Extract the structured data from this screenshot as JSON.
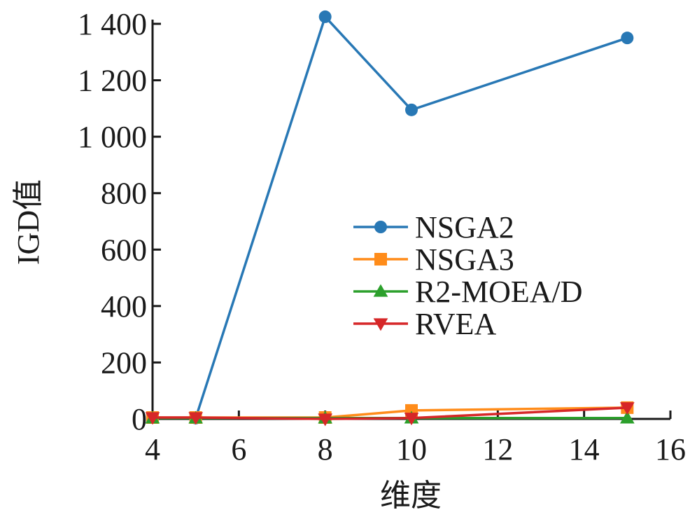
{
  "chart_data": {
    "type": "line",
    "xlabel": "维度",
    "ylabel": "IGD值",
    "xlim": [
      4,
      16
    ],
    "ylim": [
      0,
      1400
    ],
    "xticks": [
      4,
      6,
      8,
      10,
      12,
      14,
      16
    ],
    "yticks": [
      0,
      200,
      400,
      600,
      800,
      1000,
      1200,
      1400
    ],
    "xtick_labels": [
      "4",
      "6",
      "8",
      "10",
      "12",
      "14",
      "16"
    ],
    "ytick_labels": [
      "0",
      "200",
      "400",
      "600",
      "800",
      "1 000",
      "1 200",
      "1 400"
    ],
    "grid": false,
    "legend_position": "center-right",
    "x": [
      4,
      5,
      8,
      10,
      15
    ],
    "series": [
      {
        "name": "NSGA2",
        "values": [
          5,
          3,
          1425,
          1095,
          1350
        ],
        "color": "#2878b5",
        "marker": "circle"
      },
      {
        "name": "NSGA3",
        "values": [
          5,
          5,
          5,
          30,
          40
        ],
        "color": "#ff8c1a",
        "marker": "square"
      },
      {
        "name": "R2-MOEA/D",
        "values": [
          3,
          3,
          3,
          3,
          3
        ],
        "color": "#2ca02c",
        "marker": "triangle-up"
      },
      {
        "name": "RVEA",
        "values": [
          5,
          5,
          0,
          3,
          40
        ],
        "color": "#d62728",
        "marker": "triangle-down"
      }
    ]
  }
}
